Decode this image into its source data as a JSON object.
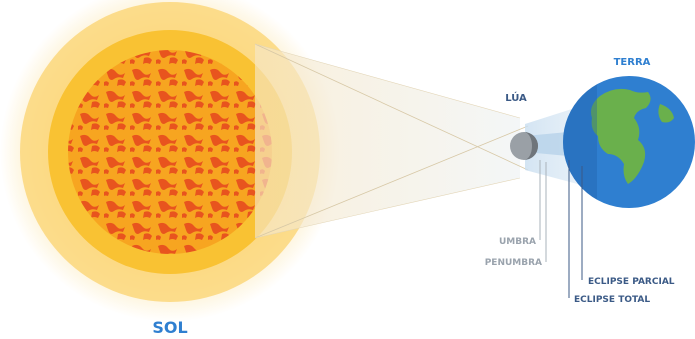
{
  "labels": {
    "sun": "SOL",
    "moon": "LÚA",
    "earth": "TERRA",
    "umbra": "UMBRA",
    "penumbra": "PENUMBRA",
    "partial_eclipse": "ECLIPSE PARCIAL",
    "total_eclipse": "ECLIPSE TOTAL"
  },
  "colors": {
    "sun_core": "#f7a520",
    "sun_spots": "#e8541e",
    "sun_ring": "#f9c233",
    "sun_glow": "#fde9b6",
    "ocean": "#2f7fd0",
    "land": "#6ab04c",
    "moon": "#9aa0a6",
    "label_blue": "#2f7fd0",
    "label_gray": "#9aa3ad",
    "label_dark": "#3b5a86"
  },
  "icons": {
    "sun": "sun-icon",
    "moon": "moon-icon",
    "earth": "earth-icon"
  }
}
